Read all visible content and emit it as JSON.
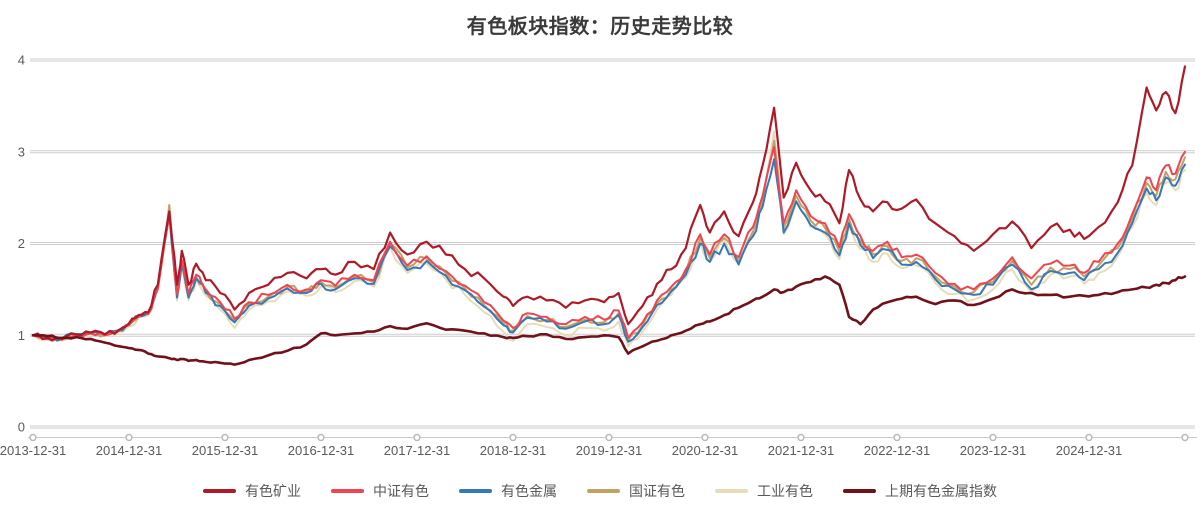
{
  "title": "有色板块指数：历史走势比较",
  "chart_data": {
    "type": "line",
    "title": "有色板块指数：历史走势比较",
    "xlabel": "",
    "ylabel": "",
    "ylim": [
      0,
      4
    ],
    "y_ticks": [
      0,
      1,
      2,
      3,
      4
    ],
    "grid": "horizontal",
    "legend_position": "bottom",
    "x_unit": "years-since-2013-12-31",
    "x_range": [
      0,
      12
    ],
    "x_tick_labels": [
      "2013-12-31",
      "2014-12-31",
      "2015-12-31",
      "2016-12-31",
      "2017-12-31",
      "2018-12-31",
      "2019-12-31",
      "2020-12-31",
      "2021-12-31",
      "2022-12-31",
      "2023-12-31",
      "2024-12-31"
    ],
    "x": [
      0,
      0.15,
      0.3,
      0.45,
      0.6,
      0.75,
      0.9,
      1.0,
      1.1,
      1.2,
      1.3,
      1.42,
      1.5,
      1.55,
      1.62,
      1.7,
      1.8,
      1.95,
      2.1,
      2.25,
      2.45,
      2.65,
      2.85,
      3.0,
      3.15,
      3.35,
      3.55,
      3.72,
      3.9,
      4.1,
      4.3,
      4.5,
      4.7,
      4.9,
      5.0,
      5.15,
      5.35,
      5.55,
      5.75,
      5.95,
      6.1,
      6.2,
      6.35,
      6.5,
      6.65,
      6.8,
      6.95,
      7.05,
      7.2,
      7.35,
      7.5,
      7.6,
      7.72,
      7.82,
      7.95,
      8.1,
      8.25,
      8.4,
      8.5,
      8.62,
      8.75,
      8.9,
      9.05,
      9.2,
      9.4,
      9.6,
      9.8,
      10.0,
      10.2,
      10.4,
      10.6,
      10.8,
      10.95,
      11.1,
      11.3,
      11.45,
      11.6,
      11.7,
      11.8,
      11.9,
      12.0
    ],
    "series": [
      {
        "name": "有色矿业",
        "color": "#ae1a27",
        "width": 2.2,
        "values": [
          1.0,
          0.97,
          0.96,
          1.01,
          1.03,
          1.01,
          1.06,
          1.13,
          1.22,
          1.25,
          1.55,
          2.35,
          1.55,
          1.92,
          1.55,
          1.78,
          1.6,
          1.46,
          1.28,
          1.46,
          1.55,
          1.68,
          1.62,
          1.72,
          1.66,
          1.8,
          1.72,
          2.12,
          1.88,
          2.02,
          1.88,
          1.72,
          1.62,
          1.42,
          1.32,
          1.42,
          1.38,
          1.3,
          1.38,
          1.36,
          1.46,
          1.12,
          1.32,
          1.56,
          1.72,
          1.95,
          2.42,
          2.12,
          2.35,
          2.08,
          2.45,
          2.85,
          3.48,
          2.5,
          2.88,
          2.58,
          2.46,
          2.22,
          2.8,
          2.48,
          2.35,
          2.45,
          2.38,
          2.48,
          2.22,
          2.08,
          1.92,
          2.1,
          2.24,
          1.95,
          2.18,
          2.15,
          2.05,
          2.18,
          2.45,
          2.85,
          3.7,
          3.45,
          3.65,
          3.42,
          3.93
        ]
      },
      {
        "name": "中证有色",
        "color": "#ee4550",
        "width": 2,
        "values": [
          1.0,
          0.96,
          0.95,
          1.0,
          1.02,
          1.0,
          1.05,
          1.11,
          1.2,
          1.23,
          1.5,
          2.3,
          1.45,
          1.82,
          1.45,
          1.66,
          1.5,
          1.36,
          1.18,
          1.36,
          1.44,
          1.55,
          1.5,
          1.6,
          1.54,
          1.66,
          1.6,
          2.02,
          1.76,
          1.86,
          1.7,
          1.54,
          1.36,
          1.16,
          1.08,
          1.24,
          1.2,
          1.12,
          1.2,
          1.17,
          1.27,
          0.97,
          1.14,
          1.38,
          1.53,
          1.72,
          2.1,
          1.88,
          2.1,
          1.85,
          2.18,
          2.52,
          3.05,
          2.22,
          2.58,
          2.3,
          2.22,
          1.96,
          2.32,
          2.08,
          1.92,
          2.02,
          1.85,
          1.88,
          1.68,
          1.56,
          1.5,
          1.62,
          1.85,
          1.62,
          1.78,
          1.76,
          1.68,
          1.8,
          2.0,
          2.32,
          2.72,
          2.58,
          2.85,
          2.76,
          3.0
        ]
      },
      {
        "name": "有色金属",
        "color": "#3579b8",
        "width": 2,
        "values": [
          1.0,
          0.97,
          0.96,
          1.01,
          1.03,
          1.01,
          1.06,
          1.12,
          1.21,
          1.24,
          1.52,
          2.32,
          1.41,
          1.78,
          1.41,
          1.62,
          1.46,
          1.32,
          1.14,
          1.32,
          1.4,
          1.51,
          1.46,
          1.56,
          1.5,
          1.62,
          1.56,
          1.97,
          1.71,
          1.81,
          1.65,
          1.49,
          1.31,
          1.11,
          1.03,
          1.19,
          1.15,
          1.07,
          1.15,
          1.12,
          1.22,
          0.93,
          1.09,
          1.33,
          1.48,
          1.66,
          2.0,
          1.8,
          2.0,
          1.77,
          2.08,
          2.4,
          2.92,
          2.12,
          2.46,
          2.2,
          2.12,
          1.87,
          2.22,
          1.98,
          1.84,
          1.93,
          1.77,
          1.8,
          1.61,
          1.5,
          1.44,
          1.55,
          1.77,
          1.5,
          1.7,
          1.68,
          1.6,
          1.72,
          1.9,
          2.22,
          2.6,
          2.47,
          2.72,
          2.63,
          2.86
        ]
      },
      {
        "name": "国证有色",
        "color": "#c5a065",
        "width": 2,
        "values": [
          1.0,
          0.96,
          0.95,
          1.0,
          1.02,
          1.0,
          1.05,
          1.11,
          1.2,
          1.24,
          1.52,
          2.42,
          1.43,
          1.8,
          1.43,
          1.64,
          1.48,
          1.34,
          1.16,
          1.34,
          1.42,
          1.53,
          1.48,
          1.58,
          1.52,
          1.64,
          1.58,
          2.0,
          1.74,
          1.84,
          1.68,
          1.51,
          1.33,
          1.13,
          1.05,
          1.21,
          1.17,
          1.09,
          1.17,
          1.14,
          1.24,
          0.95,
          1.11,
          1.35,
          1.5,
          1.69,
          2.06,
          1.84,
          2.06,
          1.81,
          2.13,
          2.46,
          3.12,
          2.17,
          2.52,
          2.25,
          2.17,
          1.91,
          2.27,
          2.03,
          1.88,
          1.97,
          1.81,
          1.84,
          1.64,
          1.53,
          1.47,
          1.58,
          1.81,
          1.55,
          1.74,
          1.72,
          1.64,
          1.76,
          1.95,
          2.27,
          2.66,
          2.52,
          2.78,
          2.7,
          2.94
        ]
      },
      {
        "name": "工业有色",
        "color": "#e7dcba",
        "width": 2,
        "values": [
          1.0,
          0.95,
          0.94,
          0.99,
          1.01,
          0.99,
          1.04,
          1.1,
          1.19,
          1.22,
          1.5,
          2.38,
          1.38,
          1.76,
          1.38,
          1.6,
          1.43,
          1.28,
          1.08,
          1.28,
          1.37,
          1.48,
          1.43,
          1.53,
          1.47,
          1.59,
          1.53,
          1.96,
          1.68,
          1.78,
          1.61,
          1.44,
          1.25,
          1.04,
          0.94,
          1.12,
          1.09,
          1.0,
          1.08,
          1.05,
          1.15,
          0.88,
          1.04,
          1.28,
          1.44,
          1.63,
          2.02,
          1.8,
          2.04,
          1.78,
          2.12,
          2.5,
          3.22,
          2.1,
          2.45,
          2.18,
          2.1,
          1.83,
          2.18,
          1.94,
          1.8,
          1.89,
          1.73,
          1.76,
          1.57,
          1.45,
          1.39,
          1.5,
          1.72,
          1.46,
          1.66,
          1.64,
          1.56,
          1.68,
          1.86,
          2.18,
          2.55,
          2.42,
          2.66,
          2.58,
          2.8
        ]
      },
      {
        "name": "上期有色金属指数",
        "color": "#70111b",
        "width": 2.6,
        "values": [
          1.0,
          0.99,
          0.97,
          0.98,
          0.96,
          0.92,
          0.88,
          0.86,
          0.84,
          0.8,
          0.77,
          0.75,
          0.73,
          0.74,
          0.72,
          0.73,
          0.71,
          0.7,
          0.68,
          0.73,
          0.78,
          0.83,
          0.9,
          1.02,
          1.0,
          1.02,
          1.04,
          1.1,
          1.07,
          1.13,
          1.06,
          1.05,
          1.02,
          0.98,
          0.97,
          0.99,
          1.01,
          0.96,
          0.98,
          1.0,
          0.98,
          0.8,
          0.88,
          0.94,
          1.0,
          1.05,
          1.12,
          1.15,
          1.22,
          1.3,
          1.38,
          1.42,
          1.5,
          1.47,
          1.53,
          1.58,
          1.64,
          1.55,
          1.2,
          1.12,
          1.28,
          1.36,
          1.4,
          1.42,
          1.34,
          1.38,
          1.33,
          1.4,
          1.5,
          1.46,
          1.44,
          1.42,
          1.43,
          1.44,
          1.47,
          1.5,
          1.52,
          1.55,
          1.57,
          1.6,
          1.64
        ]
      }
    ]
  }
}
